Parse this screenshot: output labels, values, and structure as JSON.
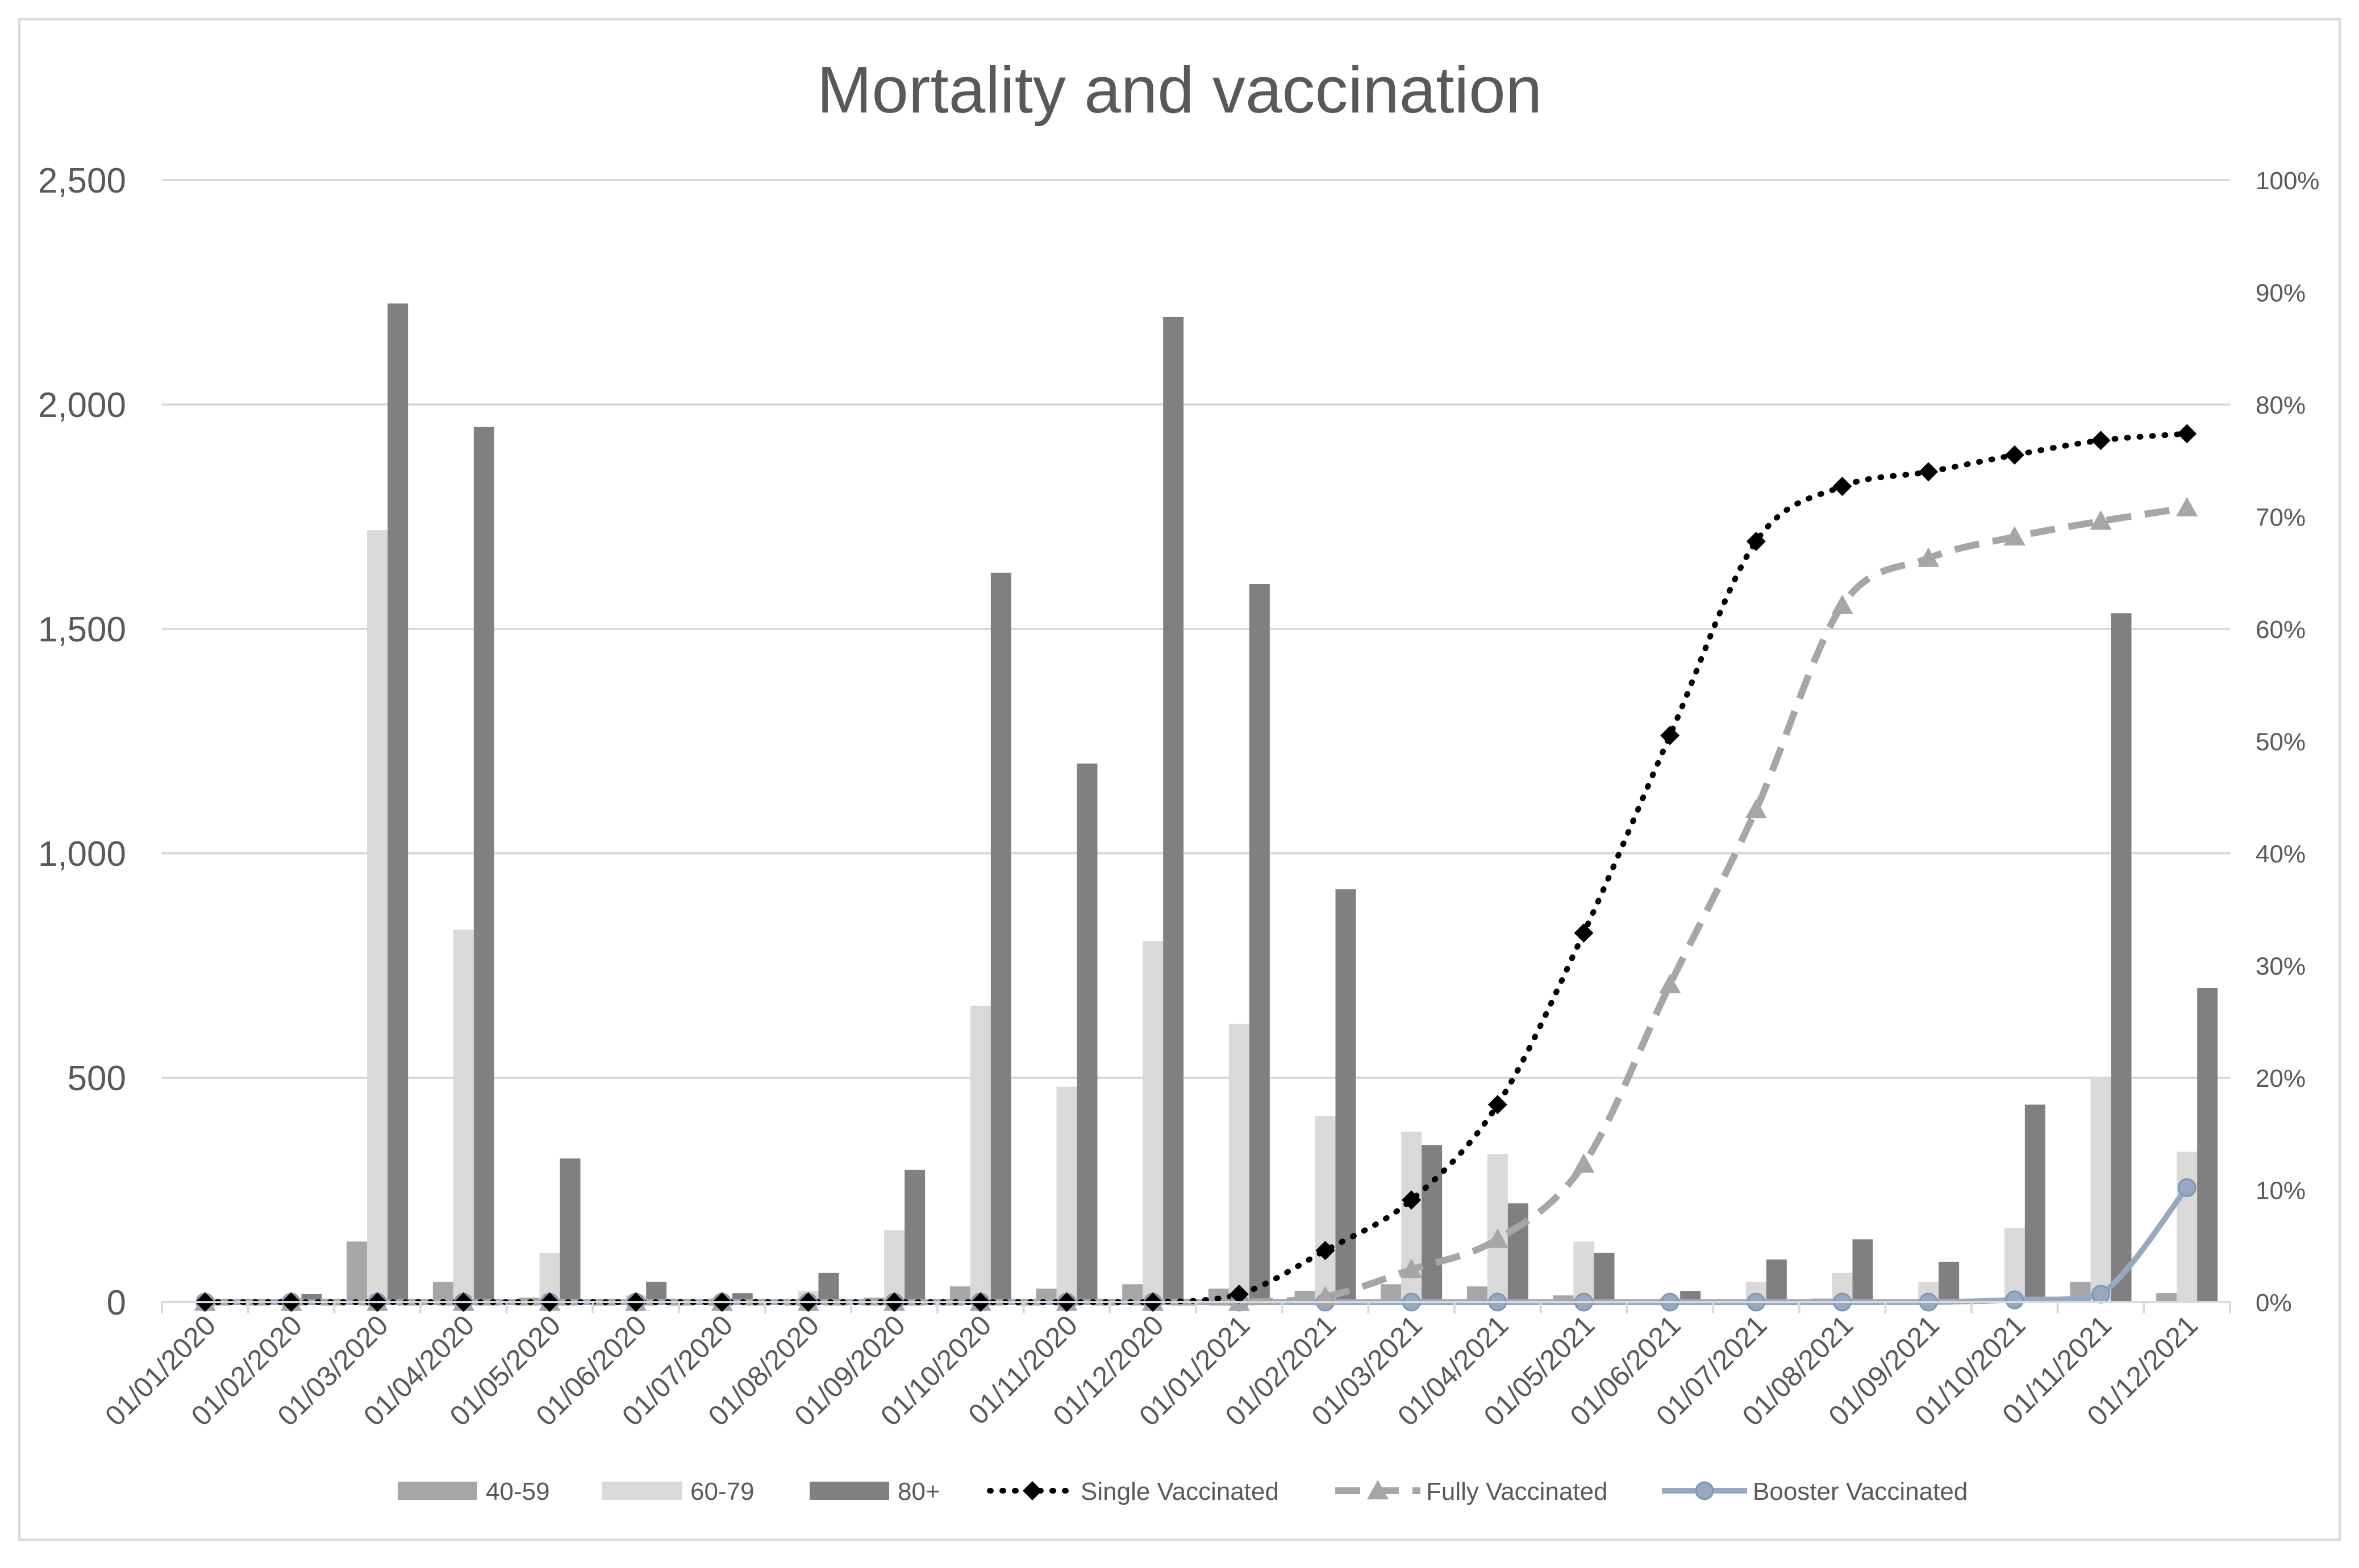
{
  "chart_data": {
    "type": "bar",
    "title": "Mortality and vaccination",
    "xlabel": "",
    "ylabel": "",
    "ylim": [
      0,
      2500
    ],
    "y_ticks": [
      0,
      500,
      1000,
      1500,
      2000,
      2500
    ],
    "y_tick_labels": [
      "0",
      "500",
      "1,000",
      "1,500",
      "2,000",
      "2,500"
    ],
    "y2lim": [
      0,
      100
    ],
    "y2_ticks": [
      0,
      10,
      20,
      30,
      40,
      50,
      60,
      70,
      80,
      90,
      100
    ],
    "y2_tick_labels": [
      "0%",
      "10%",
      "20%",
      "30%",
      "40%",
      "50%",
      "60%",
      "70%",
      "80%",
      "90%",
      "100%"
    ],
    "grid": true,
    "legend_position": "bottom",
    "categories": [
      "01/01/2020",
      "01/02/2020",
      "01/03/2020",
      "01/04/2020",
      "01/05/2020",
      "01/06/2020",
      "01/07/2020",
      "01/08/2020",
      "01/09/2020",
      "01/10/2020",
      "01/11/2020",
      "01/12/2020",
      "01/01/2021",
      "01/02/2021",
      "01/03/2021",
      "01/04/2021",
      "01/05/2021",
      "01/06/2021",
      "01/07/2021",
      "01/08/2021",
      "01/09/2021",
      "01/10/2021",
      "01/11/2021",
      "01/12/2021"
    ],
    "bar_series": [
      {
        "name": "40-59",
        "color": "#a6a6a6",
        "values": [
          1,
          3,
          135,
          45,
          10,
          3,
          2,
          3,
          10,
          35,
          30,
          40,
          30,
          25,
          40,
          35,
          15,
          3,
          5,
          8,
          5,
          8,
          45,
          20
        ]
      },
      {
        "name": "60-79",
        "color": "#d9d9d9",
        "values": [
          2,
          10,
          1720,
          830,
          110,
          15,
          10,
          25,
          160,
          660,
          480,
          805,
          620,
          415,
          380,
          330,
          135,
          10,
          45,
          65,
          45,
          165,
          500,
          335
        ]
      },
      {
        "name": "80+",
        "color": "#808080",
        "values": [
          3,
          18,
          2225,
          1950,
          320,
          45,
          20,
          65,
          295,
          1625,
          1200,
          2195,
          1600,
          920,
          350,
          220,
          110,
          25,
          95,
          140,
          90,
          440,
          1535,
          700
        ]
      }
    ],
    "line_series": [
      {
        "name": "Single Vaccinated",
        "color": "#000000",
        "style": "dotted",
        "marker": "diamond",
        "axis": "right",
        "values": [
          0,
          0,
          0,
          0,
          0,
          0,
          0,
          0,
          0,
          0,
          0,
          0,
          0.7,
          4.6,
          9.1,
          17.6,
          32.9,
          50.5,
          67.8,
          72.7,
          74.0,
          75.5,
          76.8,
          77.4
        ]
      },
      {
        "name": "Fully Vaccinated",
        "color": "#a6a6a6",
        "style": "dashed",
        "marker": "triangle",
        "axis": "right",
        "values": [
          0,
          0,
          0,
          0,
          0,
          0,
          0,
          0,
          0,
          0,
          0,
          0,
          0,
          0.5,
          2.9,
          5.6,
          12.3,
          28.3,
          43.9,
          62.1,
          66.3,
          68.2,
          69.6,
          70.8
        ]
      },
      {
        "name": "Booster Vaccinated",
        "color": "#97a9c1",
        "style": "solid",
        "marker": "circle",
        "axis": "right",
        "values": [
          0,
          0,
          0,
          0,
          0,
          0,
          0,
          0,
          0,
          0,
          0,
          0,
          0,
          0,
          0,
          0,
          0,
          0,
          0,
          0,
          0,
          0.2,
          0.7,
          10.2
        ]
      }
    ]
  }
}
